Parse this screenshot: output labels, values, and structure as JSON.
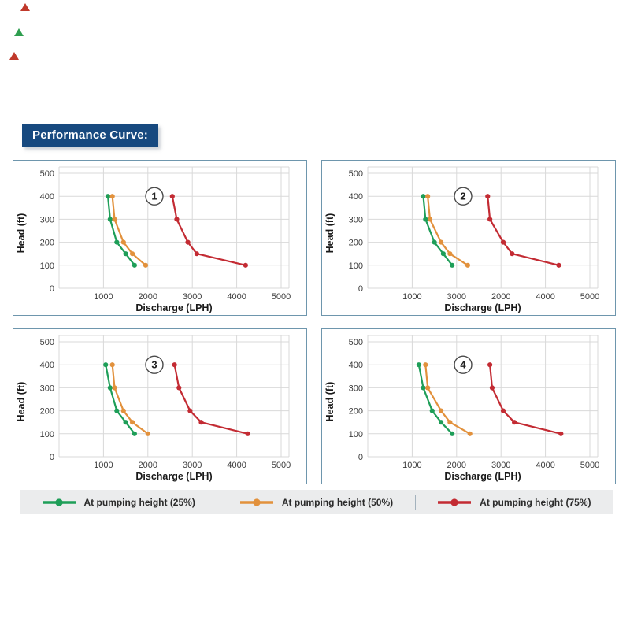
{
  "header": {
    "title": "Performance Curve:",
    "bg": "#17497f",
    "text_color": "#ffffff"
  },
  "colors": {
    "green": "#1e9e58",
    "orange": "#e2913c",
    "red": "#c32b33",
    "panel_border": "#6e96ad",
    "grid": "#d9d9d9",
    "tick_text": "#3c3c3c",
    "axis_title_text": "#1a1a1a",
    "legend_bg": "#ebeced",
    "circle_stroke": "#4a4a4a"
  },
  "decorations": {
    "marks": [
      {
        "name": "corner-mark-top",
        "color": "#c0392b"
      },
      {
        "name": "corner-mark-middle",
        "color": "#2e9e4f"
      },
      {
        "name": "corner-mark-bottom",
        "color": "#c0392b"
      }
    ]
  },
  "legend": {
    "items": [
      {
        "label": "At pumping height (25%)",
        "color": "#1e9e58"
      },
      {
        "label": "At pumping height (50%)",
        "color": "#e2913c"
      },
      {
        "label": "At pumping height (75%)",
        "color": "#c32b33"
      }
    ]
  },
  "chart_data": [
    {
      "type": "line",
      "number": "1",
      "xlabel": "Discharge (LPH)",
      "ylabel": "Head (ft)",
      "xlim": [
        0,
        5000
      ],
      "ylim": [
        0,
        500
      ],
      "grid": true,
      "x_ticks": [
        "1000",
        "2000",
        "3000",
        "4000",
        "5000"
      ],
      "y_ticks": [
        "500",
        "400",
        "300",
        "200",
        "100",
        "0"
      ],
      "series": [
        {
          "name": "At pumping height (25%)",
          "color": "#1e9e58",
          "points": [
            [
              1100,
              400
            ],
            [
              1150,
              300
            ],
            [
              1300,
              200
            ],
            [
              1500,
              150
            ],
            [
              1700,
              100
            ]
          ]
        },
        {
          "name": "At pumping height (50%)",
          "color": "#e2913c",
          "points": [
            [
              1200,
              400
            ],
            [
              1250,
              300
            ],
            [
              1450,
              200
            ],
            [
              1650,
              150
            ],
            [
              1950,
              100
            ]
          ]
        },
        {
          "name": "At pumping height (75%)",
          "color": "#c32b33",
          "points": [
            [
              2550,
              400
            ],
            [
              2650,
              300
            ],
            [
              2900,
              200
            ],
            [
              3100,
              150
            ],
            [
              4200,
              100
            ]
          ]
        }
      ]
    },
    {
      "type": "line",
      "number": "2",
      "xlabel": "Discharge (LPH)",
      "ylabel": "Head (ft)",
      "xlim": [
        0,
        5000
      ],
      "ylim": [
        0,
        500
      ],
      "grid": true,
      "x_ticks": [
        "1000",
        "3000",
        "2000",
        "4000",
        "5000"
      ],
      "y_ticks": [
        "500",
        "400",
        "300",
        "200",
        "100",
        "0"
      ],
      "series": [
        {
          "name": "At pumping height (25%)",
          "color": "#1e9e58",
          "points": [
            [
              1250,
              400
            ],
            [
              1300,
              300
            ],
            [
              1500,
              200
            ],
            [
              1700,
              150
            ],
            [
              1900,
              100
            ]
          ]
        },
        {
          "name": "At pumping height (50%)",
          "color": "#e2913c",
          "points": [
            [
              1350,
              400
            ],
            [
              1400,
              300
            ],
            [
              1650,
              200
            ],
            [
              1850,
              150
            ],
            [
              2250,
              100
            ]
          ]
        },
        {
          "name": "At pumping height (75%)",
          "color": "#c32b33",
          "points": [
            [
              2700,
              400
            ],
            [
              2750,
              300
            ],
            [
              3050,
              200
            ],
            [
              3250,
              150
            ],
            [
              4300,
              100
            ]
          ]
        }
      ]
    },
    {
      "type": "line",
      "number": "3",
      "xlabel": "Discharge (LPH)",
      "ylabel": "Head (ft)",
      "xlim": [
        0,
        5000
      ],
      "ylim": [
        0,
        500
      ],
      "grid": true,
      "x_ticks": [
        "1000",
        "2000",
        "3000",
        "4000",
        "5000"
      ],
      "y_ticks": [
        "500",
        "400",
        "300",
        "200",
        "100",
        "0"
      ],
      "series": [
        {
          "name": "At pumping height (25%)",
          "color": "#1e9e58",
          "points": [
            [
              1050,
              400
            ],
            [
              1150,
              300
            ],
            [
              1300,
              200
            ],
            [
              1500,
              150
            ],
            [
              1700,
              100
            ]
          ]
        },
        {
          "name": "At pumping height (50%)",
          "color": "#e2913c",
          "points": [
            [
              1200,
              400
            ],
            [
              1250,
              300
            ],
            [
              1450,
              200
            ],
            [
              1650,
              150
            ],
            [
              2000,
              100
            ]
          ]
        },
        {
          "name": "At pumping height (75%)",
          "color": "#c32b33",
          "points": [
            [
              2600,
              400
            ],
            [
              2700,
              300
            ],
            [
              2950,
              200
            ],
            [
              3200,
              150
            ],
            [
              4250,
              100
            ]
          ]
        }
      ]
    },
    {
      "type": "line",
      "number": "4",
      "xlabel": "Discharge (LPH)",
      "ylabel": "Head (ft)",
      "xlim": [
        0,
        5000
      ],
      "ylim": [
        0,
        500
      ],
      "grid": true,
      "x_ticks": [
        "1000",
        "2000",
        "3000",
        "4000",
        "5000"
      ],
      "y_ticks": [
        "500",
        "400",
        "300",
        "200",
        "100",
        "0"
      ],
      "series": [
        {
          "name": "At pumping height (25%)",
          "color": "#1e9e58",
          "points": [
            [
              1150,
              400
            ],
            [
              1250,
              300
            ],
            [
              1450,
              200
            ],
            [
              1650,
              150
            ],
            [
              1900,
              100
            ]
          ]
        },
        {
          "name": "At pumping height (50%)",
          "color": "#e2913c",
          "points": [
            [
              1300,
              400
            ],
            [
              1350,
              300
            ],
            [
              1650,
              200
            ],
            [
              1850,
              150
            ],
            [
              2300,
              100
            ]
          ]
        },
        {
          "name": "At pumping height (75%)",
          "color": "#c32b33",
          "points": [
            [
              2750,
              400
            ],
            [
              2800,
              300
            ],
            [
              3050,
              200
            ],
            [
              3300,
              150
            ],
            [
              4350,
              100
            ]
          ]
        }
      ]
    }
  ]
}
